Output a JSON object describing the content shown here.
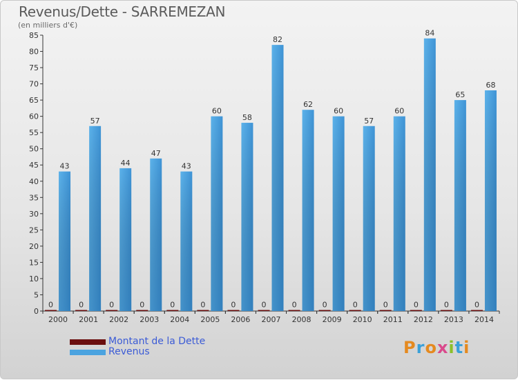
{
  "title": "Revenus/Dette - SARREMEZAN",
  "subtitle": "(en milliers d'€)",
  "colors": {
    "debt": "#6b0f0f",
    "revenue": "#4ba3e0",
    "revenue_dark": "#2c7fc0"
  },
  "legend": {
    "debt_label": "Montant de la Dette",
    "revenue_label": "Revenus"
  },
  "logo": {
    "text": "Proxiti"
  },
  "chart_data": {
    "type": "bar",
    "title": "Revenus/Dette - SARREMEZAN",
    "ylabel": "(en milliers d'€)",
    "xlabel": "",
    "ylim": [
      0,
      85
    ],
    "yticks": [
      0,
      5,
      10,
      15,
      20,
      25,
      30,
      35,
      40,
      45,
      50,
      55,
      60,
      65,
      70,
      75,
      80,
      85
    ],
    "grid": false,
    "legend_position": "bottom-left",
    "categories": [
      "2000",
      "2001",
      "2002",
      "2003",
      "2004",
      "2005",
      "2006",
      "2007",
      "2008",
      "2009",
      "2010",
      "2011",
      "2012",
      "2013",
      "2014"
    ],
    "series": [
      {
        "name": "Montant de la Dette",
        "values": [
          0,
          0,
          0,
          0,
          0,
          0,
          0,
          0,
          0,
          0,
          0,
          0,
          0,
          0,
          0
        ]
      },
      {
        "name": "Revenus",
        "values": [
          43,
          57,
          44,
          47,
          43,
          60,
          58,
          82,
          62,
          60,
          57,
          60,
          84,
          65,
          68
        ]
      }
    ]
  }
}
